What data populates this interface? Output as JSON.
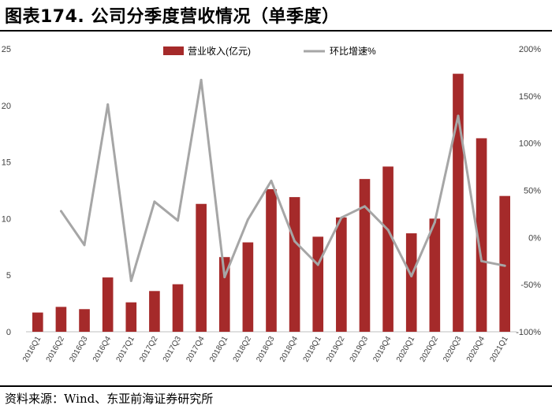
{
  "header": {
    "title": "图表174. 公司分季度营收情况（单季度）"
  },
  "footer": {
    "source": "资料来源：Wind、东亚前海证券研究所"
  },
  "chart_data": {
    "type": "bar",
    "categories": [
      "2016Q1",
      "2016Q2",
      "2016Q3",
      "2016Q4",
      "2017Q1",
      "2017Q2",
      "2017Q3",
      "2017Q4",
      "2018Q1",
      "2018Q2",
      "2018Q3",
      "2018Q4",
      "2019Q1",
      "2019Q2",
      "2019Q3",
      "2019Q4",
      "2020Q1",
      "2020Q2",
      "2020Q3",
      "2020Q4",
      "2021Q1"
    ],
    "series": [
      {
        "name": "营业收入(亿元)",
        "type": "bar",
        "axis": "left",
        "color": "#a52a2a",
        "values": [
          1.7,
          2.2,
          2.0,
          4.8,
          2.6,
          3.6,
          4.2,
          11.3,
          6.6,
          7.9,
          12.6,
          11.9,
          8.4,
          10.1,
          13.5,
          14.6,
          8.7,
          10.0,
          22.8,
          17.1,
          12.0
        ]
      },
      {
        "name": "环比增速%",
        "type": "line",
        "axis": "right",
        "color": "#a6a6a6",
        "values": [
          null,
          28,
          -8,
          141,
          -46,
          38,
          18,
          167,
          -42,
          19,
          60,
          -4,
          -29,
          21,
          33,
          8,
          -41,
          16,
          129,
          -25,
          -30
        ]
      }
    ],
    "ylim": [
      0,
      25
    ],
    "yticks": [
      0,
      5,
      10,
      15,
      20,
      25
    ],
    "y2lim": [
      -100,
      200
    ],
    "y2ticks": [
      "-100%",
      "-50%",
      "0%",
      "50%",
      "100%",
      "150%",
      "200%"
    ],
    "legend_position": "top",
    "grid": false
  }
}
